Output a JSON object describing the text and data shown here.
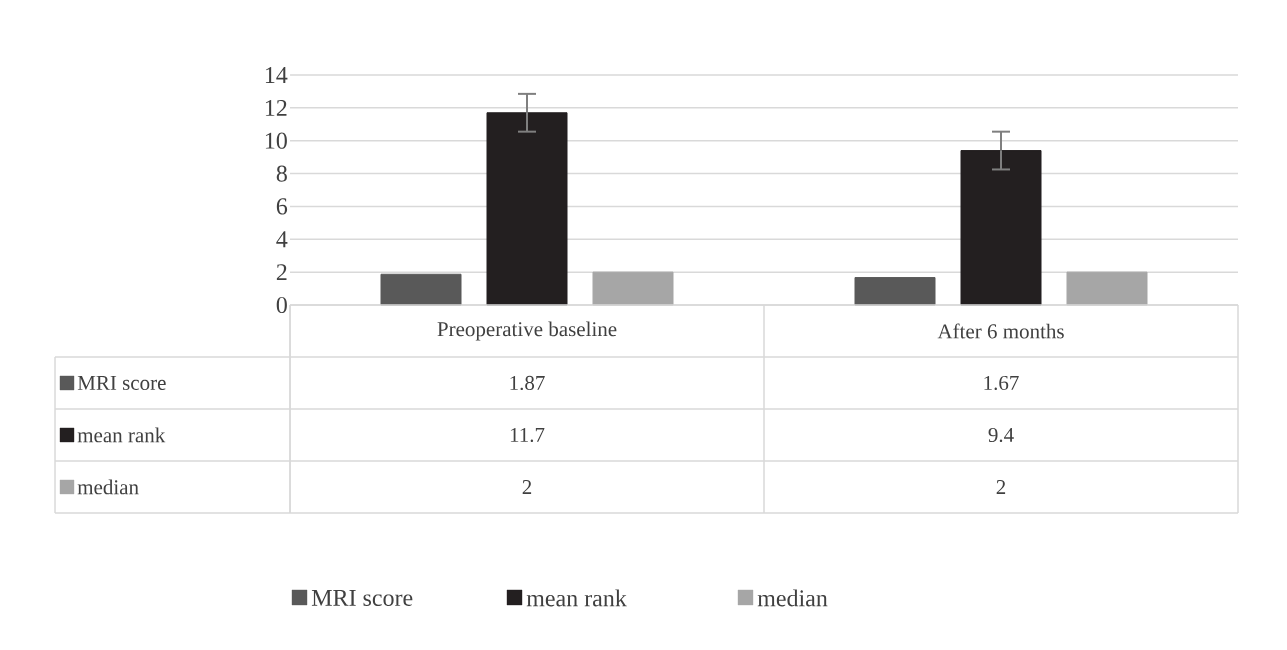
{
  "chart_data": {
    "type": "bar",
    "categories": [
      "Preoperative baseline",
      "After 6 months"
    ],
    "series": [
      {
        "name": "MRI score",
        "color": "#595959",
        "values": [
          1.87,
          1.67
        ]
      },
      {
        "name": "mean rank",
        "color": "#231f20",
        "values": [
          11.7,
          9.4
        ],
        "errors": [
          1.15,
          1.15
        ]
      },
      {
        "name": "median",
        "color": "#a6a6a6",
        "values": [
          2,
          2
        ]
      }
    ],
    "ylim": [
      0,
      14
    ],
    "yticks": [
      0,
      2,
      4,
      6,
      8,
      10,
      12,
      14
    ],
    "grid": "y",
    "legend": "bottom",
    "data_labels": true
  }
}
